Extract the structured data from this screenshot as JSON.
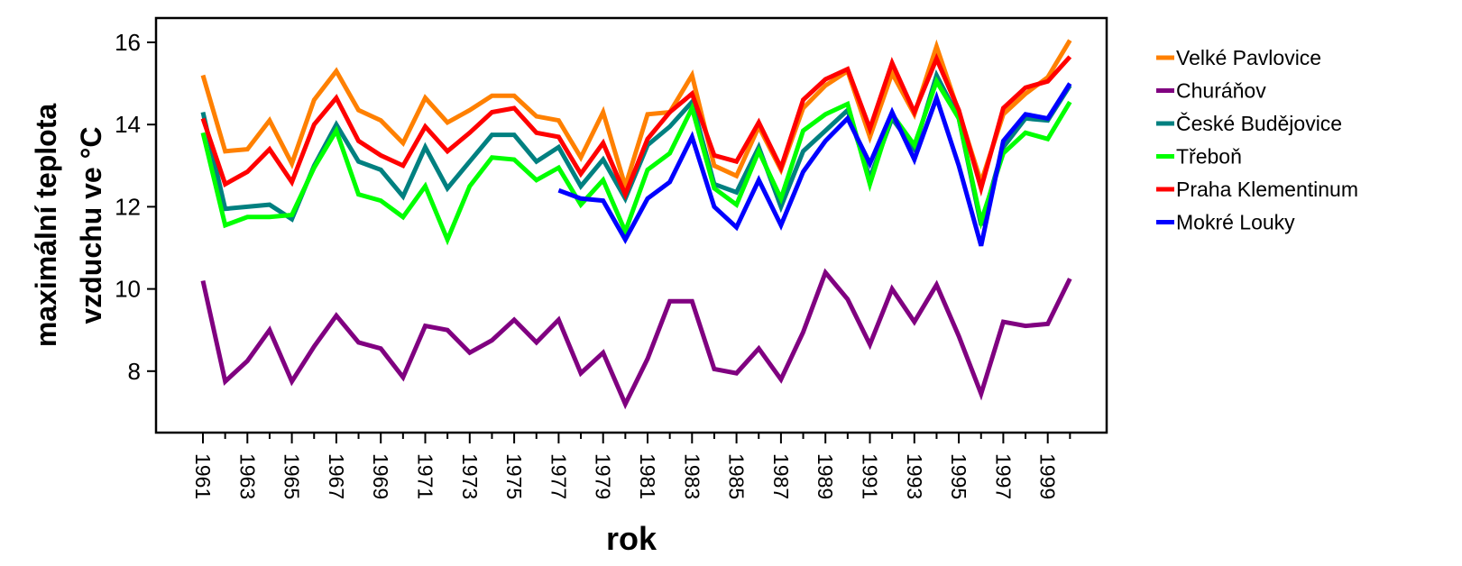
{
  "chart_data": {
    "type": "line",
    "title": "",
    "xlabel": "rok",
    "ylabel_line1": "maximální teplota",
    "ylabel_line2": "vzduchu ve °C",
    "x": [
      1961,
      1962,
      1963,
      1964,
      1965,
      1966,
      1967,
      1968,
      1969,
      1970,
      1971,
      1972,
      1973,
      1974,
      1975,
      1976,
      1977,
      1978,
      1979,
      1980,
      1981,
      1982,
      1983,
      1984,
      1985,
      1986,
      1987,
      1988,
      1989,
      1990,
      1991,
      1992,
      1993,
      1994,
      1995,
      1996,
      1997,
      1998,
      1999,
      2000
    ],
    "xtick_labels": [
      "1961",
      "1963",
      "1965",
      "1967",
      "1969",
      "1971",
      "1973",
      "1975",
      "1977",
      "1979",
      "1981",
      "1983",
      "1985",
      "1987",
      "1989",
      "1991",
      "1993",
      "1995",
      "1997",
      "1999"
    ],
    "ylim": [
      6.5,
      16.5
    ],
    "yticks": [
      8,
      10,
      12,
      14,
      16
    ],
    "ytick_labels": [
      "8",
      "10",
      "12",
      "14",
      "16"
    ],
    "grid": false,
    "legend_position": "right",
    "series": [
      {
        "name": "Velké Pavlovice",
        "color": "#ff8000",
        "values": [
          15.2,
          13.35,
          13.4,
          14.1,
          13.05,
          14.6,
          15.3,
          14.35,
          14.1,
          13.55,
          14.65,
          14.05,
          14.35,
          14.7,
          14.7,
          14.2,
          14.1,
          13.2,
          14.3,
          12.5,
          14.25,
          14.3,
          15.2,
          13.0,
          12.75,
          13.95,
          12.9,
          14.4,
          14.95,
          15.3,
          13.7,
          15.25,
          14.25,
          15.9,
          14.3,
          12.6,
          14.25,
          14.75,
          15.15,
          16.05
        ]
      },
      {
        "name": "Churáňov",
        "color": "#800080",
        "values": [
          10.2,
          7.75,
          8.25,
          9.0,
          7.75,
          8.6,
          9.35,
          8.7,
          8.55,
          7.85,
          9.1,
          9.0,
          8.45,
          8.75,
          9.25,
          8.7,
          9.25,
          7.95,
          8.45,
          7.2,
          8.3,
          9.7,
          9.7,
          8.05,
          7.95,
          8.55,
          7.8,
          8.95,
          10.4,
          9.75,
          8.65,
          10.0,
          9.2,
          10.1,
          8.85,
          7.45,
          9.2,
          9.1,
          9.15,
          10.25
        ]
      },
      {
        "name": "České Budějovice",
        "color": "#008080",
        "values": [
          14.3,
          11.95,
          12.0,
          12.05,
          11.7,
          13.0,
          14.0,
          13.1,
          12.9,
          12.25,
          13.45,
          12.45,
          13.1,
          13.75,
          13.75,
          13.1,
          13.45,
          12.5,
          13.15,
          12.2,
          13.5,
          13.95,
          14.55,
          12.55,
          12.35,
          13.45,
          12.0,
          13.35,
          13.85,
          14.35,
          12.7,
          14.15,
          13.4,
          15.2,
          14.15,
          11.55,
          13.45,
          14.15,
          14.1,
          14.95
        ]
      },
      {
        "name": "Třeboň",
        "color": "#00ff00",
        "values": [
          13.8,
          11.55,
          11.75,
          11.75,
          11.8,
          12.95,
          13.85,
          12.3,
          12.15,
          11.75,
          12.5,
          11.2,
          12.5,
          13.2,
          13.15,
          12.65,
          12.95,
          12.05,
          12.65,
          11.4,
          12.9,
          13.3,
          14.4,
          12.45,
          12.05,
          13.35,
          12.2,
          13.85,
          14.25,
          14.5,
          12.55,
          14.25,
          13.5,
          15.05,
          14.15,
          11.65,
          13.3,
          13.8,
          13.65,
          14.55
        ]
      },
      {
        "name": "Praha Klementinum",
        "color": "#ff0000",
        "values": [
          14.15,
          12.55,
          12.85,
          13.4,
          12.6,
          14.0,
          14.65,
          13.6,
          13.25,
          13.0,
          13.95,
          13.35,
          13.8,
          14.3,
          14.4,
          13.8,
          13.7,
          12.8,
          13.55,
          12.3,
          13.65,
          14.3,
          14.75,
          13.25,
          13.1,
          14.05,
          12.95,
          14.6,
          15.1,
          15.35,
          13.9,
          15.5,
          14.3,
          15.6,
          14.35,
          12.45,
          14.4,
          14.9,
          15.05,
          15.65
        ]
      },
      {
        "name": "Mokré Louky",
        "color": "#0000ff",
        "values": [
          null,
          null,
          null,
          null,
          null,
          null,
          null,
          null,
          null,
          null,
          null,
          null,
          null,
          null,
          null,
          null,
          12.4,
          12.2,
          12.15,
          11.2,
          12.2,
          12.6,
          13.7,
          12.0,
          11.5,
          12.65,
          11.55,
          12.85,
          13.6,
          14.15,
          13.05,
          14.3,
          13.15,
          14.65,
          13.0,
          11.05,
          13.6,
          14.25,
          14.15,
          15.0
        ]
      }
    ]
  }
}
